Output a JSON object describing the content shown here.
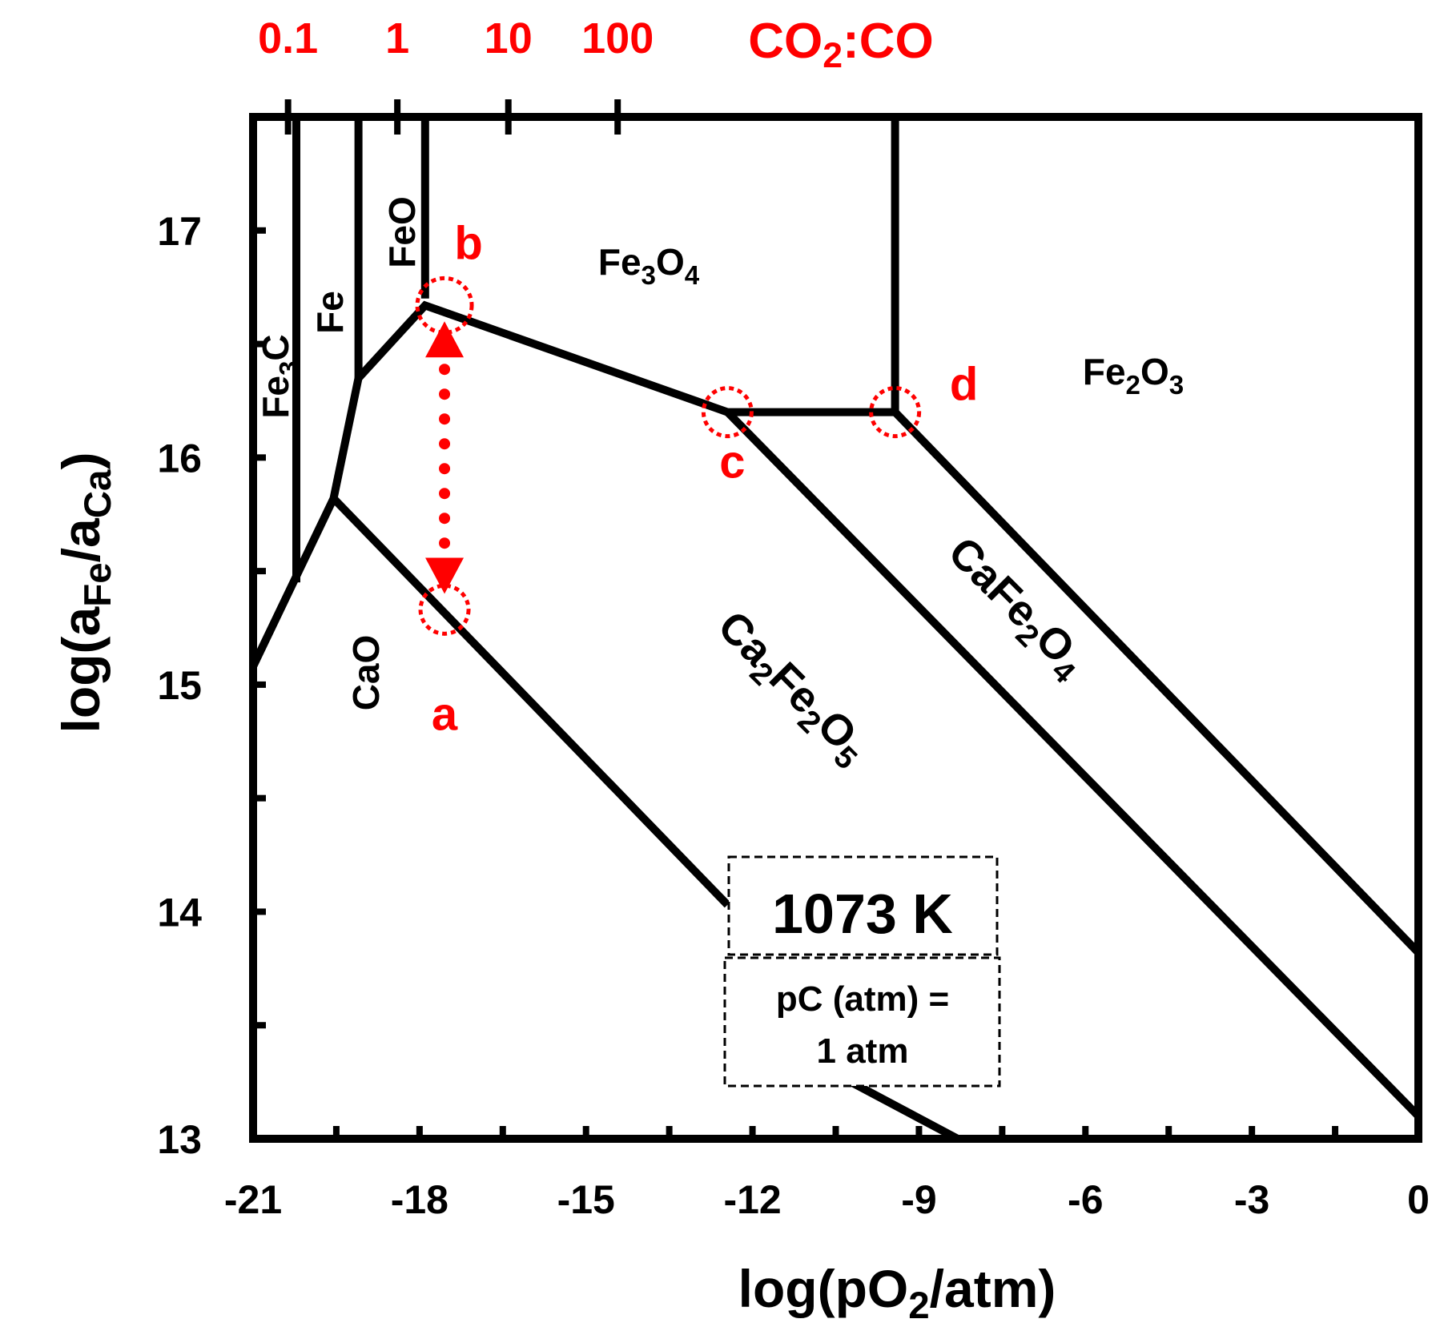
{
  "chart_data": {
    "type": "line",
    "xlabel": "log(pO2/atm)",
    "ylabel": "log(aFe/aCa)",
    "xlim": [
      -21,
      0
    ],
    "ylim": [
      13,
      17.5
    ],
    "x_ticks": [
      -21,
      -18,
      -15,
      -12,
      -9,
      -6,
      -3,
      0
    ],
    "y_ticks": [
      13,
      14,
      15,
      16,
      17
    ],
    "top_axis": {
      "label": "CO2:CO",
      "ticks": [
        {
          "label": "0.1",
          "x": -20.37
        },
        {
          "label": "1",
          "x": -18.4
        },
        {
          "label": "10",
          "x": -16.4
        },
        {
          "label": "100",
          "x": -14.43
        }
      ]
    },
    "phase_boundaries": [
      {
        "points": [
          [
            -20.22,
            17.5
          ],
          [
            -20.22,
            15.45
          ]
        ]
      },
      {
        "points": [
          [
            -19.1,
            17.5
          ],
          [
            -19.1,
            16.35
          ]
        ]
      },
      {
        "points": [
          [
            -17.9,
            17.5
          ],
          [
            -17.9,
            16.7
          ]
        ]
      },
      {
        "points": [
          [
            -9.43,
            17.5
          ],
          [
            -9.43,
            16.2
          ]
        ]
      },
      {
        "points": [
          [
            -21,
            15.08
          ],
          [
            -19.55,
            15.82
          ],
          [
            -19.1,
            16.35
          ],
          [
            -17.9,
            16.67
          ],
          [
            -12.45,
            16.2
          ],
          [
            -9.43,
            16.2
          ]
        ]
      },
      {
        "points": [
          [
            -19.55,
            15.82
          ],
          [
            -12.45,
            14.03
          ]
        ]
      },
      {
        "points": [
          [
            -12.0,
            13.48
          ],
          [
            -8.3,
            13.0
          ]
        ]
      },
      {
        "points": [
          [
            -12.45,
            16.2
          ],
          [
            0,
            13.1
          ]
        ]
      },
      {
        "points": [
          [
            -9.43,
            16.2
          ],
          [
            0,
            13.82
          ]
        ]
      }
    ],
    "phase_labels": [
      {
        "text": "Fe",
        "sub": "3",
        "tail": "O",
        "sub2": "4"
      },
      {
        "text": "Fe",
        "sub": "2",
        "tail": "O",
        "sub2": "3"
      },
      {
        "text": "FeO"
      },
      {
        "text": "Fe"
      },
      {
        "text": "Fe",
        "sub": "3",
        "tail": "C"
      },
      {
        "text": "CaO"
      },
      {
        "text": "Ca",
        "sub": "2",
        "tail": "Fe",
        "sub2": "2",
        "tail2": "O",
        "sub3": "5"
      },
      {
        "text": "CaFe",
        "sub": "2",
        "tail": "O",
        "sub2": "4"
      }
    ],
    "markers": [
      {
        "label": "a",
        "x": -17.55,
        "y": 15.33
      },
      {
        "label": "b",
        "x": -17.55,
        "y": 16.67
      },
      {
        "label": "c",
        "x": -12.45,
        "y": 16.2
      },
      {
        "label": "d",
        "x": -9.43,
        "y": 16.2
      }
    ],
    "arrow": {
      "from": [
        -17.55,
        15.4
      ],
      "to": [
        -17.55,
        16.6
      ]
    },
    "annotation_box": {
      "title": "1073 K",
      "line1": "pC (atm) =",
      "line2": "1 atm"
    },
    "colors": {
      "lines": "#000000",
      "highlight": "#ff0000"
    }
  }
}
